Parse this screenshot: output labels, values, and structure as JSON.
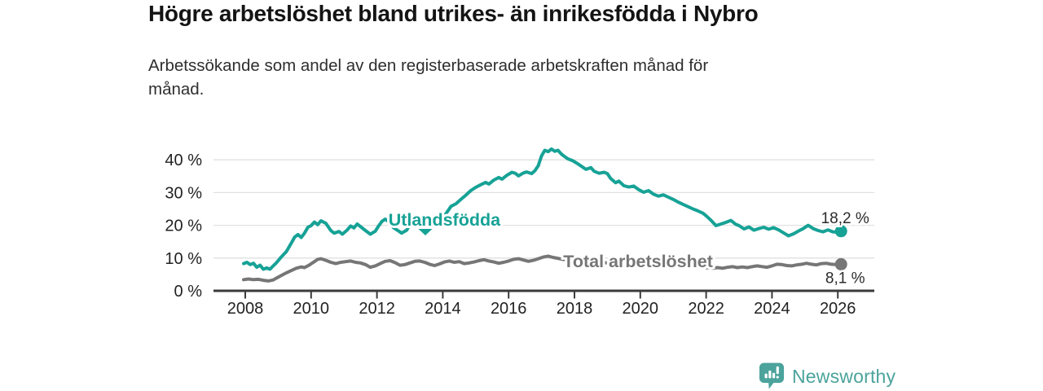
{
  "chart_data": {
    "type": "line",
    "title": "Högre arbetslöshet bland utrikes- än inrikesfödda i Nybro",
    "subtitle": "Arbetssökande som andel av den registerbaserade arbetskraften månad för\nmånad.",
    "legend": "inline-labels",
    "x_axis": {
      "label": "",
      "ticks": [
        2008,
        2010,
        2012,
        2014,
        2016,
        2018,
        2020,
        2022,
        2024,
        2026
      ],
      "range": [
        2007.0,
        2027.1
      ]
    },
    "y_axis": {
      "label": "",
      "ticks": [
        0,
        10,
        20,
        30,
        40
      ],
      "tick_suffix": " %",
      "range": [
        0,
        44
      ],
      "gridlines": true
    },
    "series": [
      {
        "id": "utlandsfodda",
        "name": "Utlandsfödda",
        "color": "#17a296",
        "end_value_label": "18,2 %",
        "end_label_placement": "above",
        "points": [
          [
            2007.95,
            8.3
          ],
          [
            2008.05,
            8.7
          ],
          [
            2008.15,
            8.0
          ],
          [
            2008.25,
            8.4
          ],
          [
            2008.35,
            7.2
          ],
          [
            2008.45,
            7.8
          ],
          [
            2008.55,
            6.6
          ],
          [
            2008.65,
            7.0
          ],
          [
            2008.75,
            6.6
          ],
          [
            2008.85,
            7.6
          ],
          [
            2008.95,
            8.6
          ],
          [
            2009.1,
            10.4
          ],
          [
            2009.25,
            12.0
          ],
          [
            2009.4,
            14.6
          ],
          [
            2009.5,
            16.4
          ],
          [
            2009.6,
            17.2
          ],
          [
            2009.7,
            16.3
          ],
          [
            2009.8,
            17.6
          ],
          [
            2009.9,
            19.4
          ],
          [
            2010.0,
            19.9
          ],
          [
            2010.1,
            21.0
          ],
          [
            2010.2,
            20.2
          ],
          [
            2010.3,
            21.4
          ],
          [
            2010.45,
            20.6
          ],
          [
            2010.6,
            18.4
          ],
          [
            2010.7,
            17.6
          ],
          [
            2010.85,
            18.1
          ],
          [
            2010.95,
            17.3
          ],
          [
            2011.1,
            18.6
          ],
          [
            2011.2,
            19.8
          ],
          [
            2011.3,
            19.2
          ],
          [
            2011.4,
            20.4
          ],
          [
            2011.5,
            19.6
          ],
          [
            2011.65,
            18.4
          ],
          [
            2011.8,
            17.3
          ],
          [
            2011.95,
            18.2
          ],
          [
            2012.05,
            19.8
          ],
          [
            2012.15,
            21.2
          ],
          [
            2012.25,
            21.9
          ],
          [
            2012.4,
            20.8
          ],
          [
            2012.5,
            19.3
          ],
          [
            2012.65,
            18.3
          ],
          [
            2012.75,
            17.6
          ],
          [
            2012.9,
            18.5
          ],
          [
            2013.0,
            20.2
          ],
          [
            2013.1,
            21.0
          ],
          [
            2013.25,
            20.4
          ],
          [
            2013.35,
            19.0
          ],
          [
            2013.45,
            18.4
          ],
          [
            2013.55,
            19.2
          ],
          [
            2013.7,
            19.9
          ],
          [
            2013.85,
            20.6
          ],
          [
            2013.95,
            21.4
          ],
          [
            2014.1,
            23.6
          ],
          [
            2014.25,
            25.8
          ],
          [
            2014.4,
            26.6
          ],
          [
            2014.55,
            27.9
          ],
          [
            2014.7,
            29.2
          ],
          [
            2014.85,
            30.6
          ],
          [
            2015.0,
            31.6
          ],
          [
            2015.15,
            32.4
          ],
          [
            2015.3,
            33.1
          ],
          [
            2015.4,
            32.6
          ],
          [
            2015.55,
            33.8
          ],
          [
            2015.7,
            34.6
          ],
          [
            2015.8,
            34.1
          ],
          [
            2015.95,
            35.3
          ],
          [
            2016.1,
            36.2
          ],
          [
            2016.2,
            35.9
          ],
          [
            2016.3,
            35.1
          ],
          [
            2016.45,
            36.0
          ],
          [
            2016.55,
            36.3
          ],
          [
            2016.7,
            35.8
          ],
          [
            2016.8,
            36.7
          ],
          [
            2016.9,
            38.2
          ],
          [
            2017.0,
            41.2
          ],
          [
            2017.1,
            42.9
          ],
          [
            2017.2,
            42.5
          ],
          [
            2017.3,
            43.3
          ],
          [
            2017.4,
            42.6
          ],
          [
            2017.5,
            42.9
          ],
          [
            2017.6,
            41.8
          ],
          [
            2017.7,
            41.0
          ],
          [
            2017.8,
            40.3
          ],
          [
            2017.95,
            39.7
          ],
          [
            2018.1,
            38.8
          ],
          [
            2018.2,
            38.1
          ],
          [
            2018.35,
            37.1
          ],
          [
            2018.5,
            37.6
          ],
          [
            2018.6,
            36.5
          ],
          [
            2018.75,
            35.9
          ],
          [
            2018.9,
            36.2
          ],
          [
            2019.0,
            35.8
          ],
          [
            2019.1,
            34.3
          ],
          [
            2019.25,
            33.0
          ],
          [
            2019.35,
            33.5
          ],
          [
            2019.5,
            32.1
          ],
          [
            2019.65,
            31.7
          ],
          [
            2019.8,
            32.0
          ],
          [
            2019.95,
            30.9
          ],
          [
            2020.1,
            30.1
          ],
          [
            2020.25,
            30.6
          ],
          [
            2020.4,
            29.5
          ],
          [
            2020.55,
            28.9
          ],
          [
            2020.7,
            29.3
          ],
          [
            2020.85,
            28.6
          ],
          [
            2021.0,
            27.9
          ],
          [
            2021.15,
            27.1
          ],
          [
            2021.3,
            26.4
          ],
          [
            2021.45,
            25.7
          ],
          [
            2021.6,
            25.0
          ],
          [
            2021.75,
            24.4
          ],
          [
            2021.9,
            23.7
          ],
          [
            2022.0,
            22.9
          ],
          [
            2022.15,
            21.5
          ],
          [
            2022.3,
            19.9
          ],
          [
            2022.45,
            20.4
          ],
          [
            2022.6,
            20.9
          ],
          [
            2022.75,
            21.5
          ],
          [
            2022.9,
            20.3
          ],
          [
            2023.0,
            19.9
          ],
          [
            2023.15,
            18.9
          ],
          [
            2023.3,
            19.5
          ],
          [
            2023.45,
            18.5
          ],
          [
            2023.6,
            19.0
          ],
          [
            2023.75,
            19.4
          ],
          [
            2023.9,
            18.8
          ],
          [
            2024.05,
            19.3
          ],
          [
            2024.2,
            18.6
          ],
          [
            2024.35,
            17.7
          ],
          [
            2024.5,
            16.8
          ],
          [
            2024.65,
            17.4
          ],
          [
            2024.8,
            18.2
          ],
          [
            2024.95,
            19.0
          ],
          [
            2025.1,
            20.0
          ],
          [
            2025.25,
            19.0
          ],
          [
            2025.4,
            18.4
          ],
          [
            2025.55,
            18.0
          ],
          [
            2025.7,
            18.6
          ],
          [
            2025.85,
            18.0
          ],
          [
            2026.0,
            17.9
          ],
          [
            2026.1,
            18.2
          ]
        ]
      },
      {
        "id": "total",
        "name": "Total arbetslöshet",
        "color": "#767676",
        "end_value_label": "8,1 %",
        "end_label_placement": "below",
        "points": [
          [
            2007.95,
            3.4
          ],
          [
            2008.1,
            3.6
          ],
          [
            2008.25,
            3.4
          ],
          [
            2008.4,
            3.5
          ],
          [
            2008.55,
            3.2
          ],
          [
            2008.7,
            3.0
          ],
          [
            2008.85,
            3.3
          ],
          [
            2008.95,
            3.9
          ],
          [
            2009.1,
            4.7
          ],
          [
            2009.25,
            5.5
          ],
          [
            2009.4,
            6.2
          ],
          [
            2009.55,
            6.9
          ],
          [
            2009.7,
            7.3
          ],
          [
            2009.8,
            7.1
          ],
          [
            2009.95,
            7.9
          ],
          [
            2010.1,
            8.9
          ],
          [
            2010.2,
            9.6
          ],
          [
            2010.3,
            9.8
          ],
          [
            2010.45,
            9.3
          ],
          [
            2010.6,
            8.7
          ],
          [
            2010.75,
            8.3
          ],
          [
            2010.9,
            8.7
          ],
          [
            2011.05,
            8.9
          ],
          [
            2011.2,
            9.1
          ],
          [
            2011.35,
            8.7
          ],
          [
            2011.5,
            8.5
          ],
          [
            2011.65,
            8.0
          ],
          [
            2011.8,
            7.2
          ],
          [
            2011.95,
            7.6
          ],
          [
            2012.1,
            8.3
          ],
          [
            2012.25,
            9.0
          ],
          [
            2012.4,
            9.2
          ],
          [
            2012.55,
            8.6
          ],
          [
            2012.7,
            7.8
          ],
          [
            2012.85,
            8.0
          ],
          [
            2013.0,
            8.5
          ],
          [
            2013.15,
            9.0
          ],
          [
            2013.3,
            9.1
          ],
          [
            2013.45,
            8.7
          ],
          [
            2013.6,
            8.1
          ],
          [
            2013.75,
            7.7
          ],
          [
            2013.9,
            8.2
          ],
          [
            2014.05,
            8.8
          ],
          [
            2014.2,
            9.1
          ],
          [
            2014.35,
            8.7
          ],
          [
            2014.5,
            8.9
          ],
          [
            2014.65,
            8.3
          ],
          [
            2014.8,
            8.5
          ],
          [
            2014.95,
            8.8
          ],
          [
            2015.1,
            9.2
          ],
          [
            2015.25,
            9.5
          ],
          [
            2015.4,
            9.1
          ],
          [
            2015.55,
            8.8
          ],
          [
            2015.7,
            8.4
          ],
          [
            2015.85,
            8.7
          ],
          [
            2016.0,
            9.1
          ],
          [
            2016.15,
            9.6
          ],
          [
            2016.3,
            9.8
          ],
          [
            2016.45,
            9.4
          ],
          [
            2016.6,
            9.0
          ],
          [
            2016.75,
            9.3
          ],
          [
            2016.9,
            9.8
          ],
          [
            2017.05,
            10.3
          ],
          [
            2017.2,
            10.6
          ],
          [
            2017.35,
            10.2
          ],
          [
            2017.5,
            9.9
          ],
          [
            2017.65,
            9.6
          ],
          [
            2017.8,
            9.4
          ],
          [
            2017.95,
            9.6
          ],
          [
            2018.1,
            9.3
          ],
          [
            2018.25,
            9.0
          ],
          [
            2018.4,
            8.8
          ],
          [
            2018.55,
            8.6
          ],
          [
            2018.7,
            8.4
          ],
          [
            2018.85,
            8.6
          ],
          [
            2019.0,
            8.5
          ],
          [
            2019.2,
            8.2
          ],
          [
            2019.4,
            7.9
          ],
          [
            2019.6,
            7.8
          ],
          [
            2019.8,
            8.0
          ],
          [
            2020.0,
            8.2
          ],
          [
            2020.2,
            8.6
          ],
          [
            2020.4,
            8.8
          ],
          [
            2020.6,
            8.5
          ],
          [
            2020.8,
            8.3
          ],
          [
            2021.0,
            8.1
          ],
          [
            2021.2,
            7.8
          ],
          [
            2021.4,
            7.6
          ],
          [
            2021.6,
            7.4
          ],
          [
            2021.8,
            7.2
          ],
          [
            2022.0,
            7.1
          ],
          [
            2022.2,
            6.9
          ],
          [
            2022.35,
            7.1
          ],
          [
            2022.5,
            6.9
          ],
          [
            2022.65,
            7.2
          ],
          [
            2022.8,
            7.4
          ],
          [
            2022.95,
            7.1
          ],
          [
            2023.1,
            7.3
          ],
          [
            2023.25,
            7.1
          ],
          [
            2023.4,
            7.4
          ],
          [
            2023.55,
            7.6
          ],
          [
            2023.7,
            7.4
          ],
          [
            2023.85,
            7.2
          ],
          [
            2024.0,
            7.6
          ],
          [
            2024.15,
            8.1
          ],
          [
            2024.3,
            8.0
          ],
          [
            2024.45,
            7.7
          ],
          [
            2024.6,
            7.6
          ],
          [
            2024.75,
            7.9
          ],
          [
            2024.9,
            8.1
          ],
          [
            2025.05,
            8.4
          ],
          [
            2025.2,
            8.1
          ],
          [
            2025.35,
            7.9
          ],
          [
            2025.5,
            8.3
          ],
          [
            2025.65,
            8.4
          ],
          [
            2025.8,
            8.1
          ],
          [
            2025.95,
            8.0
          ],
          [
            2026.1,
            8.1
          ]
        ]
      }
    ],
    "annotations": [
      {
        "series": "utlandsfodda",
        "year": 2012.35,
        "pct": 19.9,
        "caret": {
          "year": 2013.47,
          "pct": 18.9
        }
      },
      {
        "series": "total",
        "year": 2017.66,
        "pct": 7.2
      }
    ]
  },
  "footer": {
    "brand": "Newsworthy"
  },
  "colors": {
    "accent_teal": "#17a296",
    "series_gray": "#767676",
    "logo_teal": "#4ba39c",
    "axis": "#3b3b3b",
    "grid": "#e1e1e1",
    "tick_text": "#222222",
    "end_label_text": "#2b2b2b"
  }
}
